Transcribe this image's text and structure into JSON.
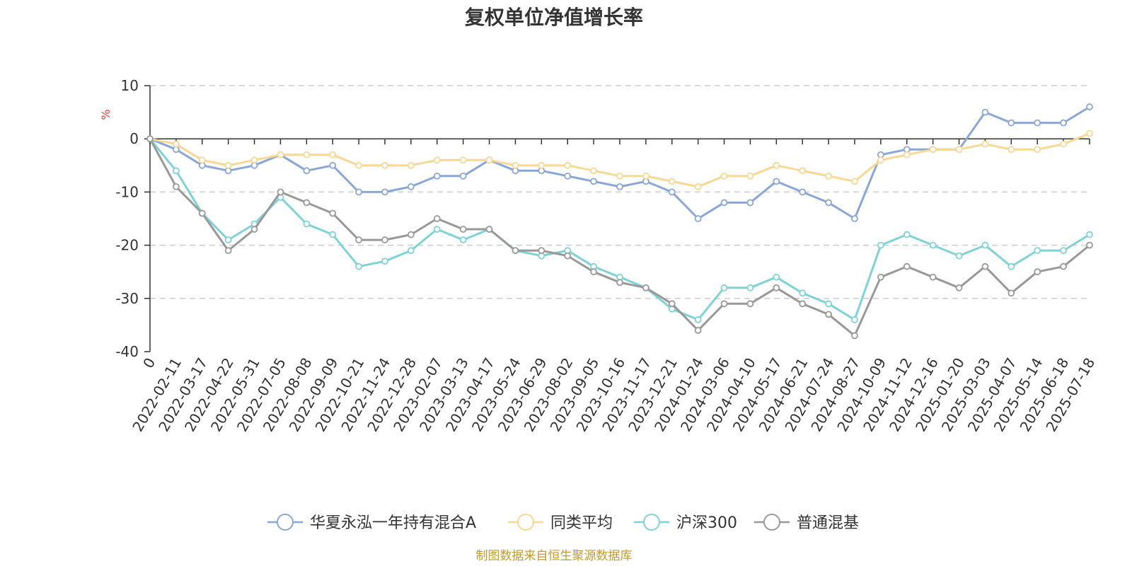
{
  "chart_data": {
    "type": "line",
    "title": "复权单位净值增长率",
    "ylabel": "%",
    "xlabel": "",
    "ylim": [
      -40,
      10
    ],
    "yticks": [
      10,
      0,
      -10,
      -20,
      -30,
      -40
    ],
    "grid": true,
    "legend_position": "bottom",
    "x": [
      "0",
      "2022-02-11",
      "2022-03-17",
      "2022-04-22",
      "2022-05-31",
      "2022-07-05",
      "2022-08-08",
      "2022-09-09",
      "2022-10-21",
      "2022-11-24",
      "2022-12-28",
      "2023-02-07",
      "2023-03-13",
      "2023-04-17",
      "2023-05-24",
      "2023-06-29",
      "2023-08-02",
      "2023-09-05",
      "2023-10-16",
      "2023-11-17",
      "2023-12-21",
      "2024-01-24",
      "2024-03-06",
      "2024-04-10",
      "2024-05-17",
      "2024-06-21",
      "2024-07-24",
      "2024-08-27",
      "2024-10-09",
      "2024-11-12",
      "2024-12-16",
      "2025-01-20",
      "2025-03-03",
      "2025-04-07",
      "2025-05-14",
      "2025-06-18",
      "2025-07-18"
    ],
    "series": [
      {
        "name": "华夏永泓一年持有混合A",
        "color": "#8aa7d6",
        "values": [
          0,
          -2,
          -5,
          -6,
          -5,
          -3,
          -6,
          -5,
          -10,
          -10,
          -9,
          -7,
          -7,
          -4,
          -6,
          -6,
          -7,
          -8,
          -9,
          -8,
          -10,
          -15,
          -12,
          -12,
          -8,
          -10,
          -12,
          -15,
          -3,
          -2,
          -2,
          -2,
          5,
          3,
          3,
          3,
          6
        ]
      },
      {
        "name": "同类平均",
        "color": "#f9d894",
        "values": [
          0,
          -1,
          -4,
          -5,
          -4,
          -3,
          -3,
          -3,
          -5,
          -5,
          -5,
          -4,
          -4,
          -4,
          -5,
          -5,
          -5,
          -6,
          -7,
          -7,
          -8,
          -9,
          -7,
          -7,
          -5,
          -6,
          -7,
          -8,
          -4,
          -3,
          -2,
          -2,
          -1,
          -2,
          -2,
          -1,
          1
        ]
      },
      {
        "name": "沪深300",
        "color": "#7fd3d6",
        "values": [
          0,
          -6,
          -14,
          -19,
          -16,
          -11,
          -16,
          -18,
          -24,
          -23,
          -21,
          -17,
          -19,
          -17,
          -21,
          -22,
          -21,
          -24,
          -26,
          -28,
          -32,
          -34,
          -28,
          -28,
          -26,
          -29,
          -31,
          -34,
          -20,
          -18,
          -20,
          -22,
          -20,
          -24,
          -21,
          -21,
          -18
        ]
      },
      {
        "name": "普通混基",
        "color": "#999999",
        "values": [
          0,
          -9,
          -14,
          -21,
          -17,
          -10,
          -12,
          -14,
          -19,
          -19,
          -18,
          -15,
          -17,
          -17,
          -21,
          -21,
          -22,
          -25,
          -27,
          -28,
          -31,
          -36,
          -31,
          -31,
          -28,
          -31,
          -33,
          -37,
          -26,
          -24,
          -26,
          -28,
          -24,
          -29,
          -25,
          -24,
          -20
        ]
      }
    ]
  },
  "source_note": "制图数据来自恒生聚源数据库"
}
